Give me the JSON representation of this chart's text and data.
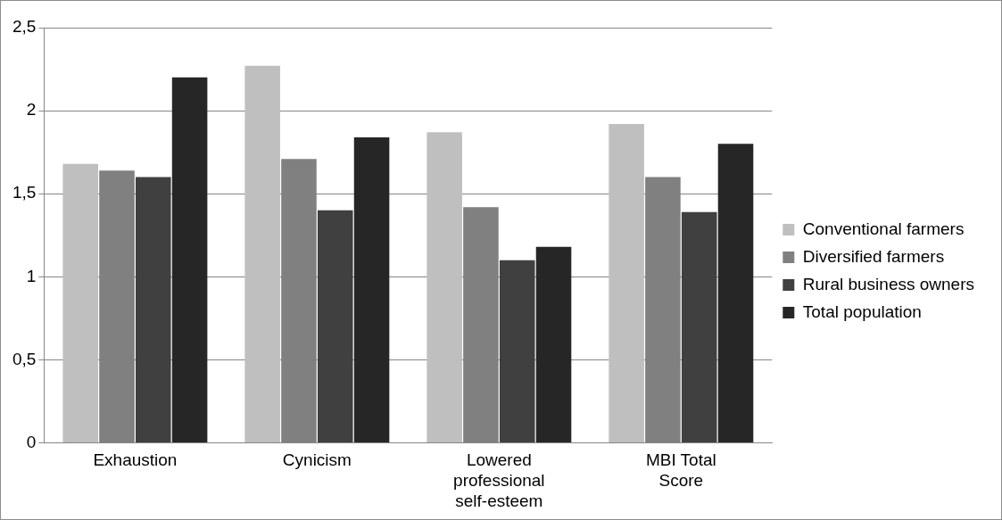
{
  "chart_data": {
    "type": "bar",
    "categories": [
      "Exhaustion",
      "Cynicism",
      "Lowered professional self-esteem",
      "MBI Total Score"
    ],
    "series": [
      {
        "name": "Conventional farmers",
        "color": "#bfbfbf",
        "values": [
          1.68,
          2.27,
          1.87,
          1.92
        ]
      },
      {
        "name": "Diversified farmers",
        "color": "#808080",
        "values": [
          1.64,
          1.71,
          1.42,
          1.6
        ]
      },
      {
        "name": "Rural business owners",
        "color": "#404040",
        "values": [
          1.6,
          1.4,
          1.1,
          1.39
        ]
      },
      {
        "name": "Total population",
        "color": "#262626",
        "values": [
          2.2,
          1.84,
          1.18,
          1.8
        ]
      }
    ],
    "ylim": [
      0,
      2.5
    ],
    "yticks": [
      0,
      {
        "value": 0.5,
        "label": "0,5"
      },
      1,
      {
        "value": 1.5,
        "label": "1,5"
      },
      2,
      {
        "value": 2.5,
        "label": "2,5"
      }
    ],
    "grid": "y",
    "legend": "right"
  }
}
